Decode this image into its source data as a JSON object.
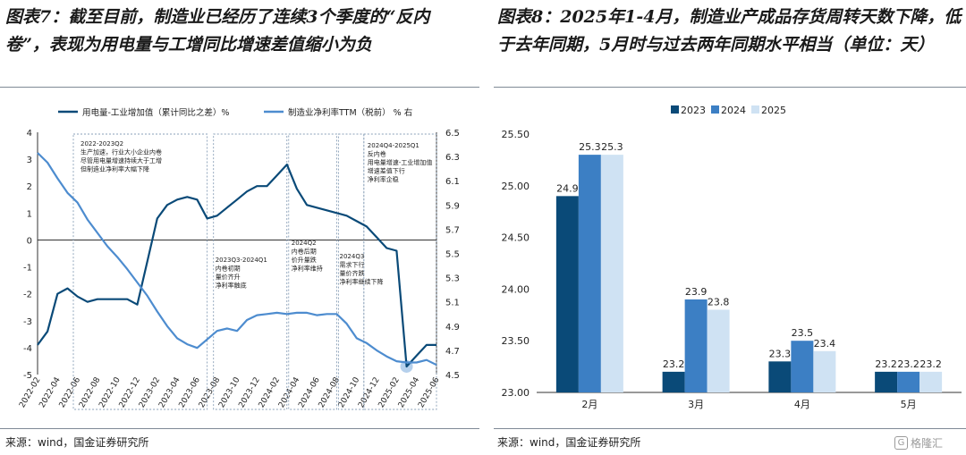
{
  "left_figure": {
    "title": "图表7：截至目前，制造业已经历了连续3个季度的“反内卷”，表现为用电量与工增同比增速差值缩小为负",
    "source": "来源：wind，国金证券研究所"
  },
  "right_figure": {
    "title": "图表8：2025年1-4月，制造业产成品存货周转天数下降，低于去年同期，5月时与过去两年同期水平相当（单位：天）",
    "source": "来源：wind，国金证券研究所"
  },
  "watermark": "格隆汇",
  "colors": {
    "dark_blue": "#0a4a78",
    "mid_blue": "#3c7fc4",
    "light_blue": "#cfe2f3",
    "line_light": "#4d8ccf"
  },
  "chart_data": [
    {
      "type": "line",
      "legend": [
        "用电量-工业增加值（累计同比之差）%",
        "制造业净利率TTM（税前） % 右"
      ],
      "x_ticks": [
        "2022-02",
        "2022-04",
        "2022-06",
        "2022-08",
        "2022-10",
        "2022-12",
        "2023-02",
        "2023-04",
        "2023-06",
        "2023-08",
        "2023-10",
        "2023-12",
        "2024-02",
        "2024-04",
        "2024-06",
        "2024-08",
        "2024-10",
        "2024-12",
        "2025-02",
        "2025-04",
        "2025-06"
      ],
      "y_left_ticks": [
        "-5",
        "-4",
        "-3",
        "-2",
        "-1",
        "0",
        "1",
        "2",
        "3",
        "4"
      ],
      "y_right_ticks": [
        "4.5",
        "4.7",
        "4.9",
        "5.1",
        "5.3",
        "5.5",
        "5.7",
        "5.9",
        "6.1",
        "6.3",
        "6.5"
      ],
      "ylim_left": [
        -5,
        4
      ],
      "ylim_right": [
        4.5,
        6.5
      ],
      "series": [
        {
          "name": "用电量-工业增加值（累计同比之差）%",
          "axis": "left",
          "x": [
            "2022-02",
            "2022-03",
            "2022-04",
            "2022-05",
            "2022-06",
            "2022-07",
            "2022-08",
            "2022-09",
            "2022-10",
            "2022-11",
            "2022-12",
            "2023-01",
            "2023-02",
            "2023-03",
            "2023-04",
            "2023-05",
            "2023-06",
            "2023-07",
            "2023-08",
            "2023-09",
            "2023-10",
            "2023-11",
            "2023-12",
            "2024-01",
            "2024-02",
            "2024-03",
            "2024-04",
            "2024-05",
            "2024-06",
            "2024-07",
            "2024-08",
            "2024-09",
            "2024-10",
            "2024-11",
            "2024-12",
            "2025-01",
            "2025-02",
            "2025-03",
            "2025-04",
            "2025-05",
            "2025-06"
          ],
          "values": [
            -3.9,
            -3.4,
            -2.0,
            -1.8,
            -2.1,
            -2.3,
            -2.2,
            -2.2,
            -2.2,
            -2.2,
            -2.4,
            -0.8,
            0.8,
            1.3,
            1.5,
            1.6,
            1.5,
            0.8,
            0.9,
            1.2,
            1.5,
            1.8,
            2.0,
            2.0,
            2.4,
            2.8,
            1.9,
            1.3,
            1.2,
            1.1,
            1.0,
            0.9,
            0.7,
            0.5,
            0.1,
            -0.3,
            -0.4,
            -4.7,
            -4.3,
            -3.9,
            -3.9
          ]
        },
        {
          "name": "制造业净利率TTM（税前） % 右",
          "axis": "right",
          "x": [
            "2022-02",
            "2022-03",
            "2022-04",
            "2022-05",
            "2022-06",
            "2022-07",
            "2022-08",
            "2022-09",
            "2022-10",
            "2022-11",
            "2022-12",
            "2023-01",
            "2023-02",
            "2023-03",
            "2023-04",
            "2023-05",
            "2023-06",
            "2023-07",
            "2023-08",
            "2023-09",
            "2023-10",
            "2023-11",
            "2023-12",
            "2024-01",
            "2024-02",
            "2024-03",
            "2024-04",
            "2024-05",
            "2024-06",
            "2024-07",
            "2024-08",
            "2024-09",
            "2024-10",
            "2024-11",
            "2024-12",
            "2025-01",
            "2025-02",
            "2025-03",
            "2025-04",
            "2025-05",
            "2025-06"
          ],
          "values": [
            6.33,
            6.25,
            6.12,
            6.0,
            5.92,
            5.78,
            5.67,
            5.56,
            5.47,
            5.37,
            5.26,
            5.15,
            5.02,
            4.9,
            4.8,
            4.75,
            4.72,
            4.79,
            4.86,
            4.88,
            4.86,
            4.95,
            4.99,
            5.0,
            5.01,
            5.0,
            5.01,
            5.01,
            4.99,
            5.0,
            5.0,
            4.92,
            4.8,
            4.76,
            4.7,
            4.65,
            4.61,
            4.6,
            4.6,
            4.62,
            4.58
          ]
        }
      ],
      "annotations": [
        {
          "period": "2022-2023Q2",
          "text": [
            "生产加速，行业大小企业内卷",
            "尽管用电量增速持续大于工增",
            "但制造业净利率大幅下降"
          ]
        },
        {
          "period": "2023Q3-2024Q1",
          "text": [
            "内卷初期",
            "量价齐升",
            "净利率触底"
          ]
        },
        {
          "period": "2024Q2",
          "text": [
            "内卷后期",
            "价升量跌",
            "净利率维持"
          ]
        },
        {
          "period": "2024Q3",
          "text": [
            "需求下行",
            "量价齐跌",
            "净利率继续下降"
          ]
        },
        {
          "period": "2024Q4-2025Q1",
          "text": [
            "反内卷",
            "用电量增速-工业增加值",
            "增速差值下行",
            "净利率企稳"
          ]
        }
      ]
    },
    {
      "type": "bar",
      "categories": [
        "2月",
        "3月",
        "4月",
        "5月"
      ],
      "series": [
        {
          "name": "2023",
          "values": [
            24.9,
            23.2,
            23.3,
            23.2
          ]
        },
        {
          "name": "2024",
          "values": [
            25.3,
            23.9,
            23.5,
            23.2
          ]
        },
        {
          "name": "2025",
          "values": [
            25.3,
            23.8,
            23.4,
            23.2
          ]
        }
      ],
      "y_ticks": [
        "23.00",
        "23.50",
        "24.00",
        "24.50",
        "25.00",
        "25.50"
      ],
      "ylim": [
        23.0,
        25.5
      ],
      "legend_position": "top-center"
    }
  ]
}
